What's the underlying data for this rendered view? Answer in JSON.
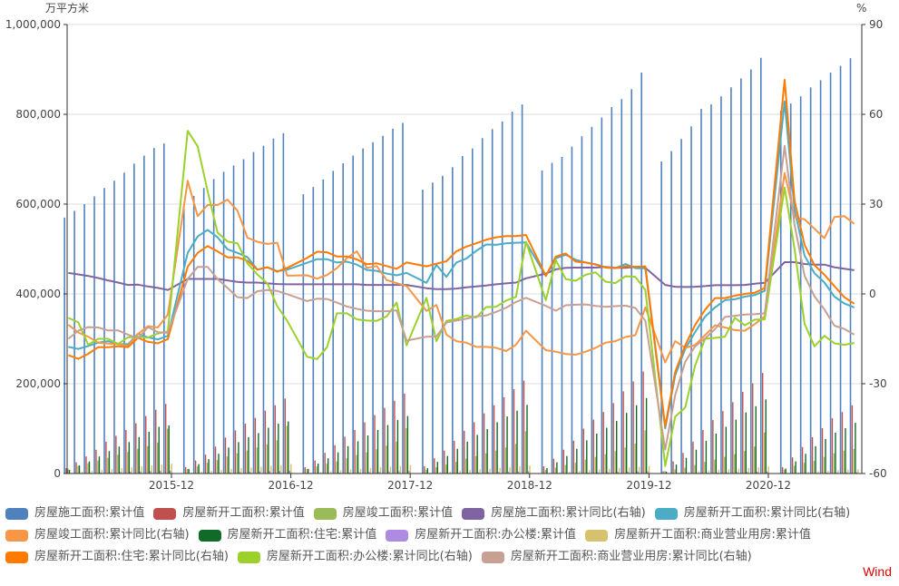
{
  "chart_data": {
    "type": "bar+line",
    "title": "",
    "left_axis": {
      "label": "万平方米",
      "ticks": [
        "0",
        "200,000",
        "400,000",
        "600,000",
        "800,000",
        "1,000,000"
      ],
      "range": [
        0,
        1000000
      ]
    },
    "right_axis": {
      "label": "%",
      "ticks": [
        "-60",
        "-30",
        "0",
        "30",
        "60",
        "90"
      ],
      "range": [
        -60,
        90
      ]
    },
    "x_ticks": [
      "2015-12",
      "2016-12",
      "2017-12",
      "2018-12",
      "2019-12",
      "2020-12"
    ],
    "grid": true,
    "legend_position": "bottom",
    "months": [
      "2015-02",
      "2015-03",
      "2015-04",
      "2015-05",
      "2015-06",
      "2015-07",
      "2015-08",
      "2015-09",
      "2015-10",
      "2015-11",
      "2015-12",
      "2016-02",
      "2016-03",
      "2016-04",
      "2016-05",
      "2016-06",
      "2016-07",
      "2016-08",
      "2016-09",
      "2016-10",
      "2016-11",
      "2016-12",
      "2017-02",
      "2017-03",
      "2017-04",
      "2017-05",
      "2017-06",
      "2017-07",
      "2017-08",
      "2017-09",
      "2017-10",
      "2017-11",
      "2017-12",
      "2018-02",
      "2018-03",
      "2018-04",
      "2018-05",
      "2018-06",
      "2018-07",
      "2018-08",
      "2018-09",
      "2018-10",
      "2018-11",
      "2018-12",
      "2019-02",
      "2019-03",
      "2019-04",
      "2019-05",
      "2019-06",
      "2019-07",
      "2019-08",
      "2019-09",
      "2019-10",
      "2019-11",
      "2019-12",
      "2020-02",
      "2020-03",
      "2020-04",
      "2020-05",
      "2020-06",
      "2020-07",
      "2020-08",
      "2020-09",
      "2020-10",
      "2020-11",
      "2020-12",
      "2021-02",
      "2021-03",
      "2021-04",
      "2021-05",
      "2021-06",
      "2021-07",
      "2021-08",
      "2021-09"
    ],
    "series": [
      {
        "name": "房屋施工面积:累计值",
        "axis": "left",
        "kind": "bar",
        "color": "#4F81BD",
        "values": [
          570000,
          585000,
          600000,
          617000,
          636000,
          652000,
          670000,
          690000,
          708000,
          725000,
          735000,
          600000,
          618000,
          636000,
          656000,
          672000,
          686000,
          700000,
          716000,
          730000,
          746000,
          758000,
          622000,
          638000,
          655000,
          674000,
          691000,
          708000,
          724000,
          738000,
          752000,
          768000,
          781000,
          632000,
          648000,
          663000,
          682000,
          707000,
          724000,
          747000,
          767000,
          784000,
          806000,
          822000,
          675000,
          692000,
          705000,
          728000,
          751000,
          772000,
          793000,
          816000,
          834000,
          856000,
          893000,
          695000,
          718000,
          745000,
          773000,
          812000,
          822000,
          840000,
          860000,
          880000,
          900000,
          926000,
          808000,
          824000,
          840000,
          860000,
          876000,
          893000,
          908000,
          925000
        ]
      },
      {
        "name": "房屋新开工面积:累计值",
        "axis": "left",
        "kind": "bar",
        "color": "#C0504D",
        "values": [
          12000,
          25000,
          38000,
          53000,
          71000,
          84000,
          97000,
          112000,
          128000,
          142000,
          155000,
          14000,
          29000,
          42000,
          60000,
          80000,
          96000,
          111000,
          124000,
          140000,
          152000,
          167000,
          14000,
          29000,
          46000,
          63000,
          82000,
          97000,
          114000,
          130000,
          146000,
          162000,
          178000,
          16000,
          34000,
          51000,
          73000,
          95000,
          114000,
          134000,
          152000,
          170000,
          188000,
          207000,
          16000,
          33000,
          53000,
          73000,
          100000,
          120000,
          137000,
          157000,
          183000,
          205000,
          227000,
          5000,
          27000,
          46000,
          71000,
          97000,
          119000,
          139000,
          159000,
          182000,
          201000,
          224000,
          14000,
          36000,
          59000,
          81000,
          101000,
          123000,
          137000,
          152000
        ]
      },
      {
        "name": "房屋竣工面积:累计值",
        "axis": "left",
        "kind": "bar",
        "color": "#9BBB59",
        "values": [
          11000,
          17000,
          23000,
          29000,
          35000,
          42000,
          48000,
          55000,
          61000,
          69000,
          100000,
          10000,
          16000,
          24000,
          30000,
          38000,
          45000,
          51000,
          58000,
          65000,
          74000,
          106000,
          10000,
          16000,
          22000,
          27000,
          34000,
          41000,
          47000,
          54000,
          62000,
          71000,
          101000,
          8000,
          14000,
          20000,
          26000,
          33000,
          39000,
          45000,
          51000,
          58000,
          66000,
          94000,
          8000,
          13000,
          19000,
          24000,
          31000,
          37000,
          43000,
          50000,
          58000,
          67000,
          96000,
          6000,
          9000,
          13000,
          19000,
          26000,
          31000,
          37000,
          43000,
          50000,
          60000,
          91000,
          9000,
          17000,
          24000,
          28000,
          37000,
          45000,
          51000,
          55000
        ]
      },
      {
        "name": "房屋新开工面积:住宅:累计值",
        "axis": "left",
        "kind": "bar",
        "color": "#116A28",
        "values": [
          8000,
          18000,
          27000,
          38000,
          50000,
          60000,
          70000,
          81000,
          93000,
          104000,
          107000,
          10000,
          21000,
          32000,
          44000,
          58000,
          70000,
          81000,
          90000,
          102000,
          111000,
          116000,
          10000,
          22000,
          34000,
          47000,
          61000,
          72000,
          85000,
          97000,
          108000,
          119000,
          128000,
          12000,
          26000,
          39000,
          55000,
          71000,
          86000,
          99000,
          114000,
          127000,
          140000,
          153000,
          12000,
          25000,
          39000,
          55000,
          74000,
          89000,
          102000,
          117000,
          135000,
          152000,
          168000,
          4000,
          20000,
          35000,
          53000,
          73000,
          89000,
          104000,
          120000,
          136000,
          150000,
          165000,
          11000,
          27000,
          44000,
          61000,
          77000,
          91000,
          101000,
          113000
        ]
      },
      {
        "name": "房屋新开工面积:办公楼:累计值",
        "axis": "left",
        "kind": "bar",
        "color": "#AE8BE0",
        "values": [
          600,
          1200,
          1800,
          2400,
          3000,
          3600,
          4200,
          4800,
          5400,
          6000,
          6600,
          500,
          1000,
          1600,
          2200,
          2800,
          3300,
          3900,
          4500,
          5100,
          5600,
          6200,
          400,
          900,
          1400,
          2000,
          2500,
          3000,
          3500,
          4000,
          4500,
          5000,
          5600,
          400,
          800,
          1300,
          1800,
          2300,
          2800,
          3200,
          3700,
          4200,
          4700,
          5100,
          400,
          800,
          1200,
          1700,
          2200,
          2700,
          3100,
          3600,
          4100,
          4600,
          5100,
          200,
          500,
          900,
          1300,
          1800,
          2200,
          2600,
          3100,
          3500,
          4000,
          4500,
          300,
          700,
          1100,
          1600,
          2000,
          2400,
          2800,
          3200
        ]
      },
      {
        "name": "房屋新开工面积:商业营业用房:累计值",
        "axis": "left",
        "kind": "bar",
        "color": "#D6C26E",
        "values": [
          2000,
          4000,
          6000,
          8000,
          10000,
          12000,
          14000,
          16000,
          18000,
          20000,
          22000,
          2000,
          4000,
          6000,
          8000,
          10000,
          12000,
          13000,
          15000,
          17000,
          19000,
          21000,
          2000,
          3000,
          5000,
          7000,
          9000,
          10000,
          12000,
          14000,
          15000,
          17000,
          19000,
          1500,
          3000,
          4500,
          6000,
          8000,
          9500,
          11000,
          12500,
          14000,
          16000,
          17500,
          1500,
          3000,
          4500,
          6000,
          7500,
          9000,
          10500,
          12000,
          13500,
          15000,
          16500,
          600,
          2000,
          3500,
          5000,
          6500,
          8000,
          9500,
          11000,
          12500,
          14000,
          15500,
          1300,
          2500,
          3700,
          5000,
          6200,
          7400,
          8300,
          9300
        ]
      },
      {
        "name": "房屋施工面积:累计同比(右轴)",
        "axis": "right",
        "kind": "line",
        "color": "#8064A2",
        "values": [
          7.0,
          6.5,
          6.0,
          5.3,
          4.5,
          3.8,
          3.0,
          3.1,
          2.5,
          2.0,
          1.3,
          5.0,
          5.0,
          5.0,
          5.0,
          4.5,
          4.0,
          3.8,
          3.8,
          3.5,
          3.3,
          3.2,
          3.2,
          3.2,
          3.2,
          3.2,
          3.2,
          3.2,
          3.0,
          3.0,
          3.0,
          3.0,
          3.0,
          1.9,
          1.6,
          1.6,
          1.8,
          2.2,
          2.5,
          2.8,
          3.2,
          3.5,
          3.8,
          5.2,
          6.8,
          8.2,
          8.7,
          8.8,
          8.8,
          8.8,
          9.0,
          8.7,
          8.7,
          9.0,
          8.7,
          3.0,
          2.4,
          2.3,
          2.4,
          2.6,
          2.9,
          2.9,
          2.9,
          3.0,
          3.4,
          3.7,
          10.6,
          10.6,
          10.0,
          9.8,
          9.8,
          8.9,
          8.4,
          7.9
        ]
      },
      {
        "name": "房屋新开工面积:累计同比(右轴)",
        "axis": "right",
        "kind": "line",
        "color": "#4BACC6",
        "values": [
          -17.7,
          -18.4,
          -17.4,
          -16.3,
          -15.8,
          -16.8,
          -16.8,
          -13.3,
          -14.5,
          -15.2,
          -14.0,
          13.7,
          19.2,
          21.4,
          18.9,
          14.9,
          13.7,
          12.3,
          8.1,
          8.9,
          7.6,
          8.1,
          10.4,
          11.6,
          11.6,
          10.5,
          10.8,
          9.8,
          8.0,
          7.7,
          6.8,
          6.2,
          7.0,
          3.7,
          9.7,
          5.7,
          10.5,
          11.8,
          14.4,
          16.5,
          16.4,
          16.9,
          17.1,
          17.2,
          6.0,
          11.9,
          13.1,
          11.4,
          10.5,
          9.9,
          8.9,
          8.6,
          10.0,
          8.6,
          8.5,
          -44.9,
          -27.2,
          -18.4,
          -12.8,
          -7.6,
          -4.5,
          -2.1,
          -1.8,
          -0.9,
          -0.4,
          1.0,
          64.3,
          28.2,
          12.8,
          6.9,
          3.8,
          -0.9,
          -3.2,
          -4.5
        ]
      },
      {
        "name": "房屋竣工面积:累计同比(右轴)",
        "axis": "right",
        "kind": "line",
        "color": "#F79646",
        "values": [
          -10.3,
          -12.9,
          -14.3,
          -16.3,
          -16.6,
          -16.8,
          -17.3,
          -13.4,
          -10.8,
          -11.2,
          -6.9,
          37.8,
          26.0,
          29.7,
          29.7,
          31.5,
          27.8,
          18.8,
          17.4,
          16.7,
          17.1,
          6.1,
          6.2,
          5.1,
          6.3,
          8.6,
          12.0,
          14.2,
          8.7,
          9.3,
          4.6,
          3.6,
          2.6,
          -5.7,
          -3.7,
          -13.6,
          -15.8,
          -16.3,
          -17.7,
          -17.7,
          -18.0,
          -19.1,
          -17.0,
          -12.3,
          -18.8,
          -19.3,
          -20.1,
          -20.3,
          -19.3,
          -18.0,
          -16.3,
          -15.8,
          -14.4,
          -13.8,
          -4.5,
          -22.9,
          -15.8,
          -18.0,
          -17.1,
          -13.8,
          -10.5,
          -11.2,
          -12.1,
          -12.3,
          -10.1,
          -7.5,
          40.4,
          25.6,
          24.9,
          21.8,
          18.6,
          25.7,
          26.0,
          23.4
        ]
      },
      {
        "name": "房屋新开工面积:住宅:累计同比(右轴)",
        "axis": "right",
        "kind": "line",
        "color": "#FF7A00",
        "values": [
          -20.5,
          -21.7,
          -20.0,
          -17.8,
          -17.8,
          -17.5,
          -17.8,
          -14.7,
          -16.0,
          -16.5,
          -15.1,
          9.1,
          13.7,
          16.0,
          14.2,
          12.2,
          12.2,
          11.1,
          8.1,
          8.9,
          7.4,
          8.7,
          12.0,
          14.1,
          13.9,
          12.5,
          12.5,
          11.5,
          9.9,
          10.2,
          9.3,
          8.4,
          10.5,
          9.2,
          10.1,
          10.9,
          14.2,
          15.8,
          16.9,
          18.1,
          18.9,
          19.3,
          19.3,
          19.7,
          6.0,
          12.5,
          13.5,
          10.8,
          10.5,
          9.8,
          8.8,
          8.6,
          9.2,
          9.1,
          9.2,
          -44.2,
          -26.1,
          -17.2,
          -10.4,
          -5.3,
          -1.4,
          -1.4,
          -0.6,
          0.0,
          0.4,
          1.9,
          71.5,
          31.1,
          16.4,
          9.6,
          6.4,
          2.6,
          -1.1,
          -3.3
        ]
      },
      {
        "name": "房屋新开工面积:办公楼:累计同比(右轴)",
        "axis": "right",
        "kind": "line",
        "color": "#9BD12A",
        "values": [
          -8.0,
          -9.5,
          -17.0,
          -15.0,
          -15.0,
          -16.7,
          -14.5,
          -14.3,
          -14.6,
          -13.2,
          -12.5,
          54.5,
          49.3,
          34.3,
          20.5,
          17.5,
          16.9,
          10.2,
          6.5,
          3.5,
          -4.1,
          -9.0,
          -21.0,
          -21.8,
          -17.8,
          -6.5,
          -6.5,
          -8.5,
          -8.9,
          -9.0,
          -7.5,
          -2.9,
          -17.2,
          -1.3,
          -15.8,
          -9.0,
          -8.4,
          -7.2,
          -7.9,
          -4.4,
          -4.3,
          -2.2,
          -1.0,
          17.4,
          -2.1,
          11.3,
          4.9,
          4.4,
          6.4,
          7.2,
          4.1,
          3.6,
          5.9,
          5.7,
          1.3,
          -57.5,
          -41.0,
          -38.0,
          -24.0,
          -15.0,
          -14.7,
          -14.3,
          -8.0,
          -10.5,
          -8.6,
          -8.5,
          35.5,
          15.0,
          -10.0,
          -17.5,
          -14.0,
          -16.5,
          -17.0,
          -16.4
        ]
      },
      {
        "name": "房屋新开工面积:商业营业用房:累计同比(右轴)",
        "axis": "right",
        "kind": "line",
        "color": "#C8A093",
        "values": [
          -15.0,
          -12.3,
          -11.1,
          -11.2,
          -12.2,
          -12.2,
          -13.6,
          -14.9,
          -11.1,
          -12.8,
          -13.0,
          5.0,
          9.0,
          9.0,
          5.0,
          2.0,
          -1.1,
          -1.4,
          0.9,
          1.3,
          1.0,
          -0.1,
          -2.4,
          -1.6,
          -1.7,
          -2.9,
          -4.2,
          -5.0,
          -5.6,
          -5.8,
          -5.8,
          -5.5,
          -15.6,
          -14.3,
          -14.2,
          -9.6,
          -8.9,
          -8.3,
          -7.5,
          -7.2,
          -6.0,
          -4.6,
          -2.7,
          -1.3,
          -4.0,
          -5.6,
          -3.8,
          -3.6,
          -3.5,
          -4.0,
          -4.3,
          -4.1,
          -3.9,
          -4.7,
          -9.0,
          -52.0,
          -33.8,
          -22.7,
          -17.5,
          -14.9,
          -11.8,
          -7.7,
          -7.3,
          -6.9,
          -6.8,
          -6.5,
          49.5,
          23.0,
          6.1,
          -0.8,
          -5.2,
          -10.6,
          -11.7,
          -13.6
        ]
      }
    ]
  },
  "axes": {
    "left_unit": "万平方米",
    "right_unit": "%",
    "left_ticks": [
      "1,000,000",
      "800,000",
      "600,000",
      "400,000",
      "200,000",
      "0"
    ],
    "right_ticks": [
      "90",
      "60",
      "30",
      "0",
      "-30",
      "-60"
    ],
    "x_ticks": [
      "2015-12",
      "2016-12",
      "2017-12",
      "2018-12",
      "2019-12",
      "2020-12"
    ]
  },
  "legend": [
    [
      "房屋施工面积:累计值",
      "#4F81BD"
    ],
    [
      "房屋新开工面积:累计值",
      "#C0504D"
    ],
    [
      "房屋竣工面积:累计值",
      "#9BBB59"
    ],
    [
      "房屋施工面积:累计同比(右轴)",
      "#8064A2"
    ],
    [
      "房屋新开工面积:累计同比(右轴)",
      "#4BACC6"
    ],
    [
      "房屋竣工面积:累计同比(右轴)",
      "#F79646"
    ],
    [
      "房屋新开工面积:住宅:累计值",
      "#116A28"
    ],
    [
      "房屋新开工面积:办公楼:累计值",
      "#AE8BE0"
    ],
    [
      "房屋新开工面积:商业营业用房:累计值",
      "#D6C26E"
    ],
    [
      "房屋新开工面积:住宅:累计同比(右轴)",
      "#FF7A00"
    ],
    [
      "房屋新开工面积:办公楼:累计同比(右轴)",
      "#9BD12A"
    ],
    [
      "房屋新开工面积:商业营业用房:累计同比(右轴)",
      "#C8A093"
    ]
  ],
  "source_label": "Wind"
}
